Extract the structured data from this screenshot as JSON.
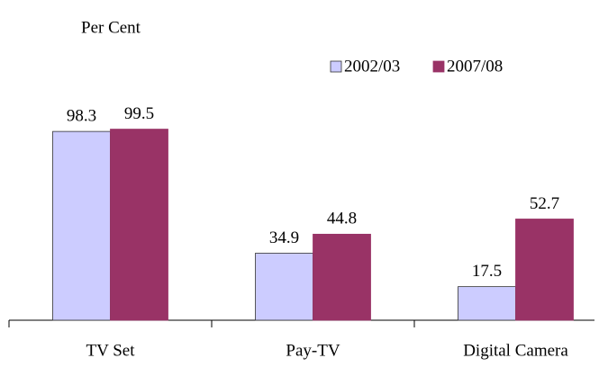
{
  "chart_data": {
    "type": "bar",
    "y_label": "Per Cent",
    "categories": [
      "TV Set",
      "Pay-TV",
      "Digital Camera"
    ],
    "series": [
      {
        "name": "2002/03",
        "color": "#ccccff",
        "values": [
          98.3,
          34.9,
          17.5
        ]
      },
      {
        "name": "2007/08",
        "color": "#993366",
        "values": [
          99.5,
          44.8,
          52.7
        ]
      }
    ],
    "ylim": [
      0,
      100
    ],
    "legend": "top-right",
    "grid": false
  }
}
